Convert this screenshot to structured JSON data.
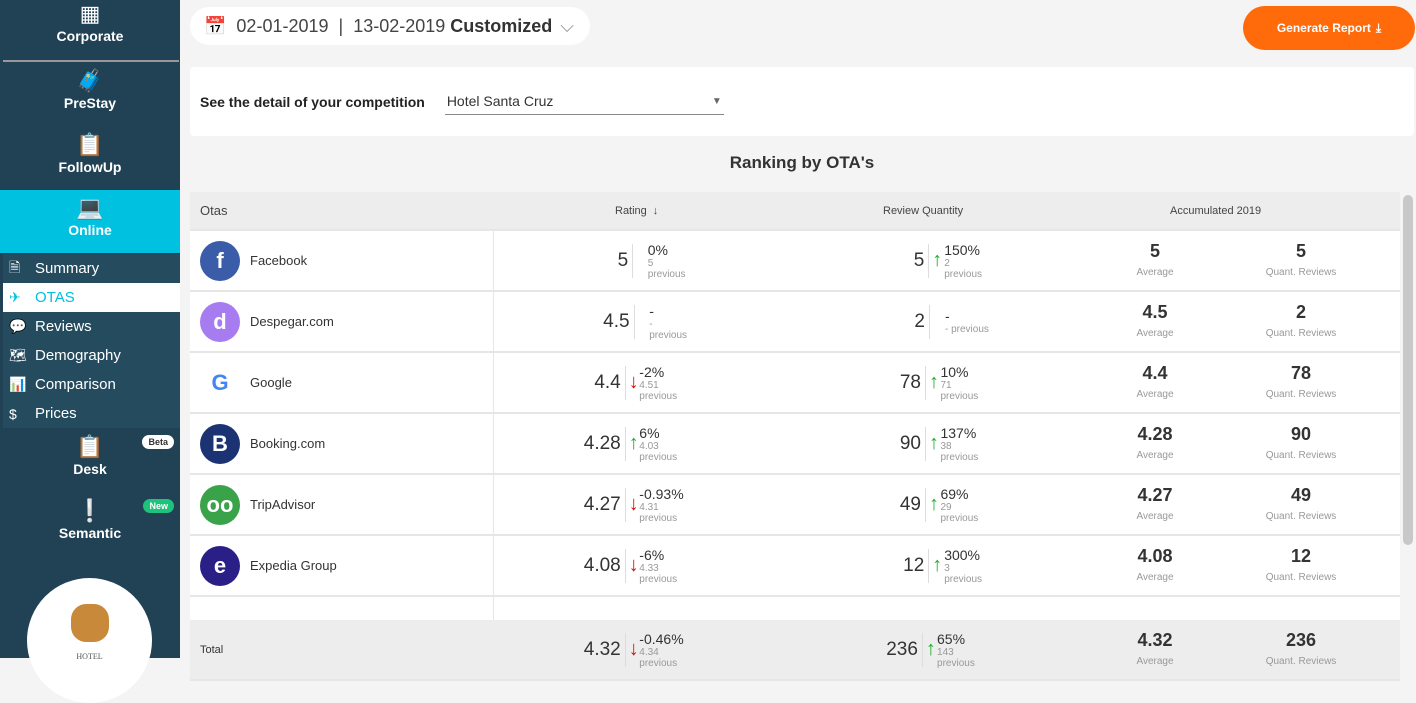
{
  "sidebar": {
    "modules": [
      {
        "label": "Corporate",
        "icon": "building-icon"
      },
      {
        "label": "PreStay",
        "icon": "luggage-icon"
      },
      {
        "label": "FollowUp",
        "icon": "clipboard-icon"
      },
      {
        "label": "Online",
        "icon": "laptop-icon"
      },
      {
        "label": "Desk",
        "icon": "clipboard-icon",
        "badge": "Beta"
      },
      {
        "label": "Semantic",
        "icon": "alert-message-icon",
        "badge": "New"
      }
    ],
    "subitems": [
      {
        "label": "Summary"
      },
      {
        "label": "OTAS"
      },
      {
        "label": "Reviews"
      },
      {
        "label": "Demography"
      },
      {
        "label": "Comparison"
      },
      {
        "label": "Prices"
      }
    ],
    "logo_text": "HOTEL"
  },
  "header": {
    "date_from": "02-01-2019",
    "separator": "|",
    "date_to": "13-02-2019",
    "range": "Customized",
    "generate": "Generate Report"
  },
  "competition": {
    "label": "See the detail of your competition",
    "selected": "Hotel Santa Cruz"
  },
  "title": "Ranking by OTA's",
  "table": {
    "headers": {
      "otas": "Otas",
      "rating": "Rating",
      "reviews": "Review Quantity",
      "acc": "Accumulated 2019"
    },
    "avg_label": "Average",
    "quant_label": "Quant. Reviews",
    "rows": [
      {
        "name": "Facebook",
        "rating": "5",
        "rchg": "0%",
        "rprev": "5 previous",
        "rdir": "",
        "qty": "5",
        "qchg": "150%",
        "qprev": "2 previous",
        "qdir": "up",
        "avg": "5",
        "quant": "5",
        "color": "#3b5ca8",
        "glyph": "f"
      },
      {
        "name": "Despegar.com",
        "rating": "4.5",
        "rchg": "-",
        "rprev": "- previous",
        "rdir": "",
        "qty": "2",
        "qchg": "-",
        "qprev": "- previous",
        "qdir": "",
        "avg": "4.5",
        "quant": "2",
        "color": "#a67cf0",
        "glyph": "d"
      },
      {
        "name": "Google",
        "rating": "4.4",
        "rchg": "-2%",
        "rprev": "4.51 previous",
        "rdir": "dn",
        "qty": "78",
        "qchg": "10%",
        "qprev": "71 previous",
        "qdir": "up",
        "avg": "4.4",
        "quant": "78",
        "color": "#ffffff",
        "glyph": "G"
      },
      {
        "name": "Booking.com",
        "rating": "4.28",
        "rchg": "6%",
        "rprev": "4.03 previous",
        "rdir": "up",
        "qty": "90",
        "qchg": "137%",
        "qprev": "38 previous",
        "qdir": "up",
        "avg": "4.28",
        "quant": "90",
        "color": "#1c3373",
        "glyph": "B"
      },
      {
        "name": "TripAdvisor",
        "rating": "4.27",
        "rchg": "-0.93%",
        "rprev": "4.31 previous",
        "rdir": "dn",
        "qty": "49",
        "qchg": "69%",
        "qprev": "29 previous",
        "qdir": "up",
        "avg": "4.27",
        "quant": "49",
        "color": "#3aa34a",
        "glyph": "oo"
      },
      {
        "name": "Expedia Group",
        "rating": "4.08",
        "rchg": "-6%",
        "rprev": "4.33 previous",
        "rdir": "dn",
        "qty": "12",
        "qchg": "300%",
        "qprev": "3 previous",
        "qdir": "up",
        "avg": "4.08",
        "quant": "12",
        "color": "#2a1f86",
        "glyph": "e"
      }
    ],
    "total": {
      "name": "Total",
      "rating": "4.32",
      "rchg": "-0.46%",
      "rprev": "4.34 previous",
      "rdir": "dn",
      "qty": "236",
      "qchg": "65%",
      "qprev": "143 previous",
      "qdir": "up",
      "avg": "4.32",
      "quant": "236"
    }
  }
}
